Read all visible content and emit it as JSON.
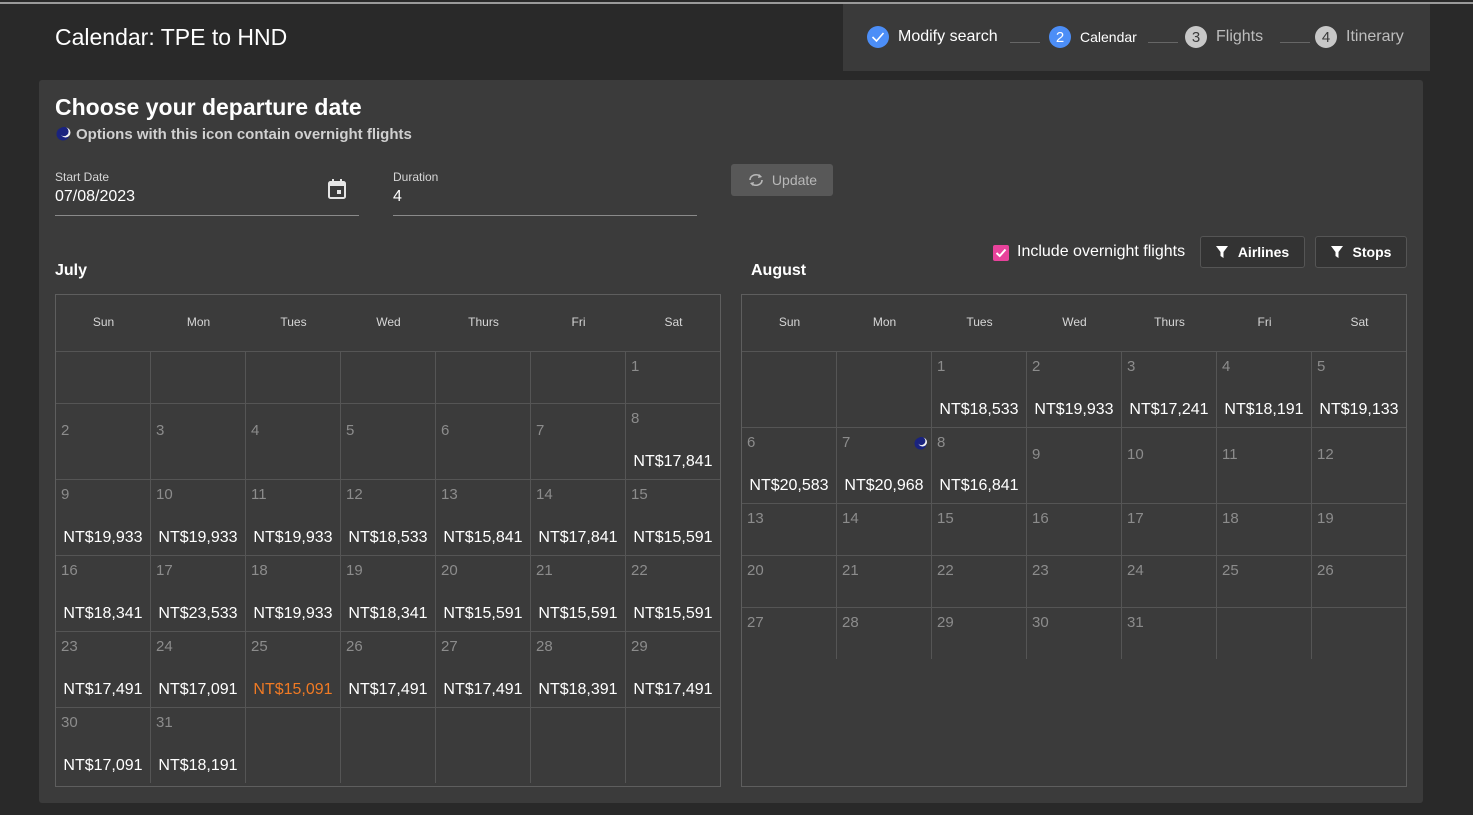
{
  "header": {
    "title": "Calendar: TPE to HND"
  },
  "steps": [
    {
      "label": "Modify search",
      "state": "done"
    },
    {
      "number": 2,
      "label": "Calendar",
      "state": "active"
    },
    {
      "number": 3,
      "label": "Flights",
      "state": "todo"
    },
    {
      "number": 4,
      "label": "Itinerary",
      "state": "todo"
    }
  ],
  "panel": {
    "title": "Choose your departure date",
    "note": "Options with this icon contain overnight flights"
  },
  "form": {
    "start_date": {
      "label": "Start Date",
      "value": "07/08/2023"
    },
    "duration": {
      "label": "Duration",
      "value": 4
    },
    "update_button": "Update"
  },
  "filters": {
    "overnight": "Include overnight flights",
    "overnight_checked": true,
    "airlines": "Airlines",
    "stops": "Stops"
  },
  "weekdays": [
    "Sun",
    "Mon",
    "Tues",
    "Wed",
    "Thurs",
    "Fri",
    "Sat"
  ],
  "months": [
    {
      "name": "July",
      "weeks": [
        [
          null,
          null,
          null,
          null,
          null,
          null,
          {
            "day": 1
          }
        ],
        [
          {
            "day": 2
          },
          {
            "day": 3
          },
          {
            "day": 4
          },
          {
            "day": 5
          },
          {
            "day": 6
          },
          {
            "day": 7
          },
          {
            "day": 8,
            "price": "NT$17,841"
          }
        ],
        [
          {
            "day": 9,
            "price": "NT$19,933"
          },
          {
            "day": 10,
            "price": "NT$19,933"
          },
          {
            "day": 11,
            "price": "NT$19,933"
          },
          {
            "day": 12,
            "price": "NT$18,533"
          },
          {
            "day": 13,
            "price": "NT$15,841"
          },
          {
            "day": 14,
            "price": "NT$17,841"
          },
          {
            "day": 15,
            "price": "NT$15,591"
          }
        ],
        [
          {
            "day": 16,
            "price": "NT$18,341"
          },
          {
            "day": 17,
            "price": "NT$23,533"
          },
          {
            "day": 18,
            "price": "NT$19,933"
          },
          {
            "day": 19,
            "price": "NT$18,341"
          },
          {
            "day": 20,
            "price": "NT$15,591"
          },
          {
            "day": 21,
            "price": "NT$15,591"
          },
          {
            "day": 22,
            "price": "NT$15,591"
          }
        ],
        [
          {
            "day": 23,
            "price": "NT$17,491"
          },
          {
            "day": 24,
            "price": "NT$17,091"
          },
          {
            "day": 25,
            "price": "NT$15,091",
            "cheapest": true
          },
          {
            "day": 26,
            "price": "NT$17,491"
          },
          {
            "day": 27,
            "price": "NT$17,491"
          },
          {
            "day": 28,
            "price": "NT$18,391"
          },
          {
            "day": 29,
            "price": "NT$17,491"
          }
        ],
        [
          {
            "day": 30,
            "price": "NT$17,091"
          },
          {
            "day": 31,
            "price": "NT$18,191"
          },
          null,
          null,
          null,
          null,
          null
        ]
      ]
    },
    {
      "name": "August",
      "weeks": [
        [
          null,
          null,
          {
            "day": 1,
            "price": "NT$18,533"
          },
          {
            "day": 2,
            "price": "NT$19,933"
          },
          {
            "day": 3,
            "price": "NT$17,241"
          },
          {
            "day": 4,
            "price": "NT$18,191"
          },
          {
            "day": 5,
            "price": "NT$19,133"
          }
        ],
        [
          {
            "day": 6,
            "price": "NT$20,583"
          },
          {
            "day": 7,
            "price": "NT$20,968",
            "overnight": true
          },
          {
            "day": 8,
            "price": "NT$16,841"
          },
          {
            "day": 9
          },
          {
            "day": 10
          },
          {
            "day": 11
          },
          {
            "day": 12
          }
        ],
        [
          {
            "day": 13
          },
          {
            "day": 14
          },
          {
            "day": 15
          },
          {
            "day": 16
          },
          {
            "day": 17
          },
          {
            "day": 18
          },
          {
            "day": 19
          }
        ],
        [
          {
            "day": 20
          },
          {
            "day": 21
          },
          {
            "day": 22
          },
          {
            "day": 23
          },
          {
            "day": 24
          },
          {
            "day": 25
          },
          {
            "day": 26
          }
        ],
        [
          {
            "day": 27
          },
          {
            "day": 28
          },
          {
            "day": 29
          },
          {
            "day": 30
          },
          {
            "day": 31
          },
          null,
          null
        ]
      ]
    }
  ]
}
